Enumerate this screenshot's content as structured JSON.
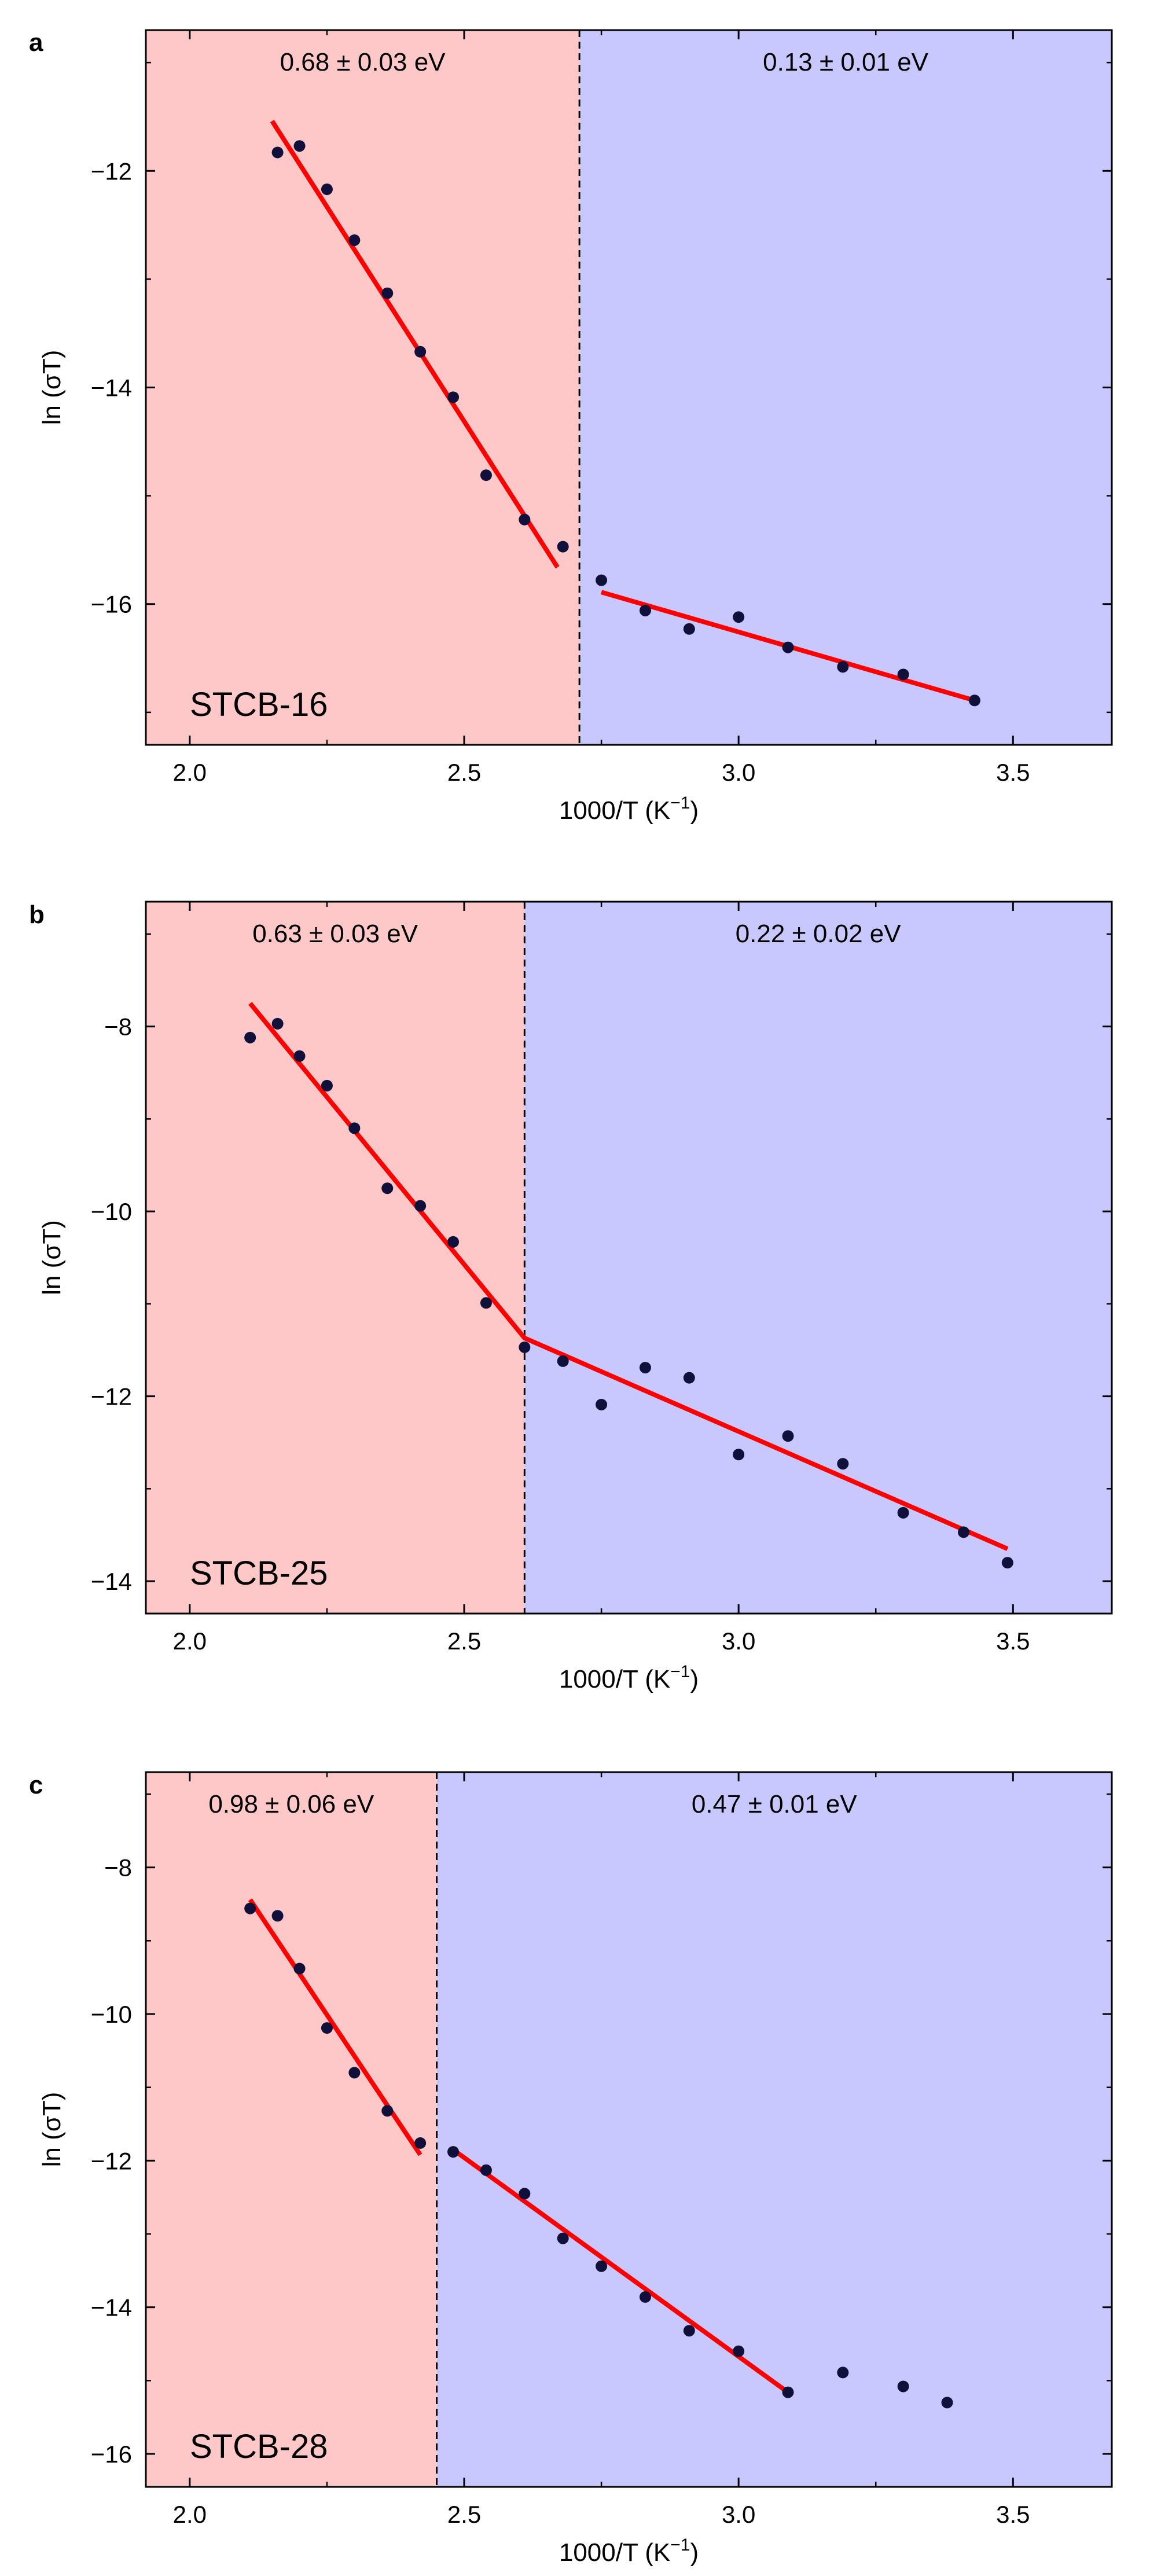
{
  "chart_data": [
    {
      "type": "scatter",
      "panel": "a",
      "sample": "STCB-16",
      "xlabel": "1000/T (K",
      "xlabel_sup": "−1",
      "xlabel_end": ")",
      "ylabel": "ln (σT)",
      "xlim": [
        1.92,
        3.68
      ],
      "ylim": [
        -17.3,
        -10.7
      ],
      "xticks": [
        2.0,
        2.5,
        3.0,
        3.5
      ],
      "xtick_labels": [
        "2.0",
        "2.5",
        "3.0",
        "3.5"
      ],
      "yticks": [
        -16,
        -14,
        -12
      ],
      "ytick_labels": [
        "−16",
        "−14",
        "−12"
      ],
      "divider_x": 2.71,
      "regions": [
        {
          "label": "0.68 ± 0.03 eV",
          "x_from": 1.92,
          "x_to": 2.71,
          "color": "#ffc8c8"
        },
        {
          "label": "0.13 ± 0.01 eV",
          "x_from": 2.71,
          "x_to": 3.68,
          "color": "#c8c8ff"
        }
      ],
      "points": {
        "x": [
          2.16,
          2.2,
          2.25,
          2.3,
          2.36,
          2.42,
          2.48,
          2.54,
          2.61,
          2.68,
          2.75,
          2.83,
          2.91,
          3.0,
          3.09,
          3.19,
          3.3,
          3.43
        ],
        "y": [
          -11.83,
          -11.77,
          -12.17,
          -12.64,
          -13.13,
          -13.67,
          -14.09,
          -14.81,
          -15.22,
          -15.47,
          -15.78,
          -16.06,
          -16.23,
          -16.12,
          -16.4,
          -16.58,
          -16.65,
          -16.89
        ]
      },
      "fits": [
        {
          "x": [
            2.15,
            2.67
          ],
          "y": [
            -11.54,
            -15.66
          ]
        },
        {
          "x": [
            2.75,
            3.43
          ],
          "y": [
            -15.89,
            -16.89
          ]
        }
      ]
    },
    {
      "type": "scatter",
      "panel": "b",
      "sample": "STCB-25",
      "xlabel": "1000/T (K",
      "xlabel_sup": "−1",
      "xlabel_end": ")",
      "ylabel": "ln (σT)",
      "xlim": [
        1.92,
        3.68
      ],
      "ylim": [
        -14.35,
        -6.65
      ],
      "xticks": [
        2.0,
        2.5,
        3.0,
        3.5
      ],
      "xtick_labels": [
        "2.0",
        "2.5",
        "3.0",
        "3.5"
      ],
      "yticks": [
        -14,
        -12,
        -10,
        -8
      ],
      "ytick_labels": [
        "−14",
        "−12",
        "−10",
        "−8"
      ],
      "divider_x": 2.61,
      "regions": [
        {
          "label": "0.63 ± 0.03 eV",
          "x_from": 1.92,
          "x_to": 2.61,
          "color": "#ffc8c8"
        },
        {
          "label": "0.22 ± 0.02 eV",
          "x_from": 2.61,
          "x_to": 3.68,
          "color": "#c8c8ff"
        }
      ],
      "points": {
        "x": [
          2.11,
          2.16,
          2.2,
          2.25,
          2.3,
          2.36,
          2.42,
          2.48,
          2.54,
          2.61,
          2.68,
          2.75,
          2.83,
          2.91,
          3.0,
          3.09,
          3.19,
          3.3,
          3.41,
          3.49
        ],
        "y": [
          -8.12,
          -7.97,
          -8.32,
          -8.64,
          -9.1,
          -9.75,
          -9.94,
          -10.33,
          -10.99,
          -11.47,
          -11.62,
          -12.09,
          -11.69,
          -11.8,
          -12.63,
          -12.43,
          -12.73,
          -13.26,
          -13.47,
          -13.8
        ]
      },
      "fits": [
        {
          "x": [
            2.11,
            2.61,
            3.49
          ],
          "y": [
            -7.75,
            -11.37,
            -13.65
          ]
        }
      ]
    },
    {
      "type": "scatter",
      "panel": "c",
      "sample": "STCB-28",
      "xlabel": "1000/T (K",
      "xlabel_sup": "−1",
      "xlabel_end": ")",
      "ylabel": "ln (σT)",
      "xlim": [
        1.92,
        3.68
      ],
      "ylim": [
        -16.45,
        -6.7
      ],
      "xticks": [
        2.0,
        2.5,
        3.0,
        3.5
      ],
      "xtick_labels": [
        "2.0",
        "2.5",
        "3.0",
        "3.5"
      ],
      "yticks": [
        -16,
        -14,
        -12,
        -10,
        -8
      ],
      "ytick_labels": [
        "−16",
        "−14",
        "−12",
        "−10",
        "−8"
      ],
      "divider_x": 2.45,
      "regions": [
        {
          "label": "0.98 ± 0.06 eV",
          "x_from": 1.92,
          "x_to": 2.45,
          "color": "#ffc8c8"
        },
        {
          "label": "0.47 ± 0.01 eV",
          "x_from": 2.45,
          "x_to": 3.68,
          "color": "#c8c8ff"
        }
      ],
      "points": {
        "x": [
          2.11,
          2.16,
          2.2,
          2.25,
          2.3,
          2.36,
          2.42,
          2.48,
          2.54,
          2.61,
          2.68,
          2.75,
          2.83,
          2.91,
          3.0,
          3.09,
          3.19,
          3.3,
          3.38
        ],
        "y": [
          -8.56,
          -8.66,
          -9.38,
          -10.19,
          -10.8,
          -11.32,
          -11.76,
          -11.88,
          -12.13,
          -12.45,
          -13.06,
          -13.44,
          -13.86,
          -14.32,
          -14.6,
          -15.16,
          -14.89,
          -15.08,
          -15.3
        ]
      },
      "fits": [
        {
          "x": [
            2.11,
            2.42
          ],
          "y": [
            -8.44,
            -11.92
          ]
        },
        {
          "x": [
            2.48,
            3.09
          ],
          "y": [
            -11.85,
            -15.16
          ]
        }
      ]
    }
  ]
}
